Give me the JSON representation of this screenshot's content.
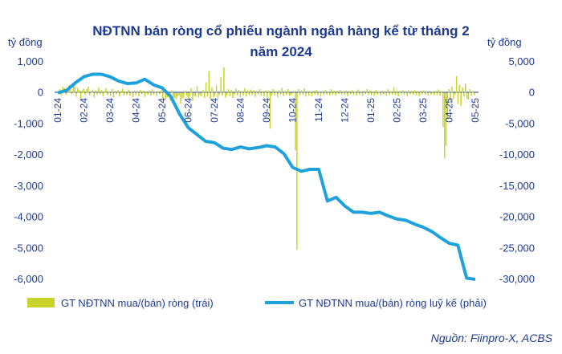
{
  "chart_data": {
    "type": "bar+line",
    "title_line1": "NĐTNN bán ròng cổ phiếu ngành ngân hàng kể từ tháng 2",
    "title_line2": "năm 2024",
    "left_unit": "tỷ đồng",
    "right_unit": "tỷ đồng",
    "left_axis": {
      "min": -6000,
      "max": 1000,
      "ticks": [
        "1,000",
        "0",
        "-1,000",
        "-2,000",
        "-3,000",
        "-4,000",
        "-5,000",
        "-6,000"
      ],
      "values": [
        1000,
        0,
        -1000,
        -2000,
        -3000,
        -4000,
        -5000,
        -6000
      ]
    },
    "right_axis": {
      "min": -30000,
      "max": 5000,
      "ticks": [
        "5,000",
        "0",
        "-5,000",
        "-10,000",
        "-15,000",
        "-20,000",
        "-25,000",
        "-30,000"
      ],
      "values": [
        5000,
        0,
        -5000,
        -10000,
        -15000,
        -20000,
        -25000,
        -30000
      ]
    },
    "x_labels": [
      "01-24",
      "02-24",
      "03-24",
      "04-24",
      "05-24",
      "06-24",
      "07-24",
      "08-24",
      "09-24",
      "10-24",
      "11-24",
      "12-24",
      "01-25",
      "02-25",
      "03-25",
      "04-25",
      "05-25"
    ],
    "series": [
      {
        "name": "GT NĐTNN mua/(bán) ròng (trái)",
        "type": "bar",
        "color": "#c8d42a",
        "daily_values": [
          0,
          120,
          -80,
          200,
          150,
          -60,
          90,
          250,
          180,
          -40,
          300,
          220,
          -120,
          160,
          90,
          -200,
          80,
          140,
          -60,
          120,
          200,
          -90,
          60,
          110,
          -150,
          80,
          -50,
          170,
          -30,
          90,
          -110,
          60,
          150,
          -70,
          40,
          -90,
          130,
          -160,
          70,
          -40,
          90,
          -120,
          60,
          140,
          -80,
          50,
          -60,
          110,
          -90,
          40,
          -150,
          80,
          -70,
          60,
          -110,
          90,
          -40,
          70,
          -130,
          50,
          -60,
          80,
          -90,
          120,
          -70,
          40,
          -100,
          60,
          -50,
          90,
          -180,
          50,
          -200,
          -150,
          -120,
          -250,
          80,
          -300,
          -160,
          -210,
          -120,
          -80,
          -350,
          -180,
          -140,
          60,
          -90,
          -220,
          -120,
          150,
          -260,
          -90,
          -130,
          220,
          -150,
          -70,
          -110,
          90,
          -160,
          340,
          -120,
          700,
          -200,
          180,
          -150,
          -100,
          240,
          -180,
          -60,
          500,
          -90,
          820,
          -150,
          -80,
          120,
          -110,
          90,
          -160,
          -60,
          140,
          -80,
          100,
          -140,
          60,
          -90,
          150,
          -120,
          80,
          -70,
          110,
          -60,
          90,
          -130,
          70,
          -50,
          120,
          -90,
          60,
          -110,
          80,
          -150,
          60,
          -1150,
          -90,
          120,
          -80,
          60,
          -140,
          90,
          -50,
          160,
          -100,
          70,
          -60,
          120,
          -90,
          -80,
          -20,
          60,
          -1850,
          -5050,
          120,
          -70,
          80,
          -60,
          150,
          -120,
          60,
          -90,
          40,
          -110,
          70,
          -60,
          100,
          -80,
          50,
          -120,
          60,
          -70,
          90,
          -60,
          40,
          -80,
          120,
          -50,
          70,
          -90,
          60,
          -40,
          100,
          -70,
          50,
          -60,
          80,
          -110,
          60,
          -50,
          90,
          -70,
          40,
          -80,
          110,
          -60,
          50,
          -90,
          70,
          -40,
          120,
          -60,
          80,
          -70,
          50,
          -100,
          90,
          -60,
          40,
          -80,
          70,
          -50,
          60,
          -90,
          120,
          -70,
          50,
          -60,
          180,
          -80,
          60,
          -110,
          70,
          -40,
          90,
          -70,
          60,
          -120,
          80,
          -50,
          70,
          -60,
          90,
          -80,
          60,
          -100,
          70,
          -50,
          80,
          -60,
          40,
          -90,
          70,
          -60,
          50,
          -80,
          60,
          -70,
          110,
          -90,
          60,
          -1100,
          -2100,
          -1700,
          -800,
          120,
          -300,
          200,
          -200,
          -60,
          540,
          -350,
          260,
          -420,
          180,
          -120,
          300,
          -200,
          -220,
          120,
          -100,
          60,
          -80
        ]
      },
      {
        "name": "GT NĐTNN mua/(bán) ròng luỹ kế (phải)",
        "type": "line",
        "color": "#1fa2dc",
        "points": [
          [
            "01-24",
            0
          ],
          [
            "01-24+",
            400
          ],
          [
            "02-24-",
            1600
          ],
          [
            "02-24",
            2600
          ],
          [
            "02-24+",
            3000
          ],
          [
            "03-24-",
            3000
          ],
          [
            "03-24",
            2600
          ],
          [
            "03-24+",
            1900
          ],
          [
            "04-24-",
            1500
          ],
          [
            "04-24",
            1600
          ],
          [
            "04-24+",
            2200
          ],
          [
            "05-24-",
            1300
          ],
          [
            "05-24",
            800
          ],
          [
            "05-24+",
            -600
          ],
          [
            "06-24-",
            -3400
          ],
          [
            "06-24",
            -5600
          ],
          [
            "06-24+",
            -6700
          ],
          [
            "07-24-",
            -7800
          ],
          [
            "07-24",
            -8000
          ],
          [
            "07-24+",
            -8900
          ],
          [
            "08-24-",
            -9100
          ],
          [
            "08-24",
            -8700
          ],
          [
            "08-24+",
            -9000
          ],
          [
            "09-24-",
            -8800
          ],
          [
            "09-24",
            -8500
          ],
          [
            "09-24+",
            -8700
          ],
          [
            "10-24-",
            -9800
          ],
          [
            "10-24",
            -12000
          ],
          [
            "10-24+",
            -12600
          ],
          [
            "11-24-",
            -12300
          ],
          [
            "11-24-a",
            -12300
          ],
          [
            "11-24-b",
            -17400
          ],
          [
            "11-24",
            -16800
          ],
          [
            "11-24+",
            -18200
          ],
          [
            "12-24-",
            -19200
          ],
          [
            "12-24",
            -19200
          ],
          [
            "12-24+",
            -19400
          ],
          [
            "01-25",
            -19200
          ],
          [
            "01-25+",
            -19800
          ],
          [
            "02-25",
            -20300
          ],
          [
            "02-25+",
            -20500
          ],
          [
            "03-25",
            -21100
          ],
          [
            "03-25+",
            -21600
          ],
          [
            "04-25-",
            -22300
          ],
          [
            "04-25",
            -23300
          ],
          [
            "04-25+",
            -24200
          ],
          [
            "04-25++",
            -24500
          ],
          [
            "05-25-",
            -29800
          ],
          [
            "05-25",
            -30000
          ]
        ]
      }
    ],
    "legend": [
      "GT NĐTNN mua/(bán) ròng (trái)",
      "GT NĐTNN mua/(bán) ròng luỹ kế (phải)"
    ]
  },
  "source": "Nguồn: Fiinpro-X, ACBS"
}
